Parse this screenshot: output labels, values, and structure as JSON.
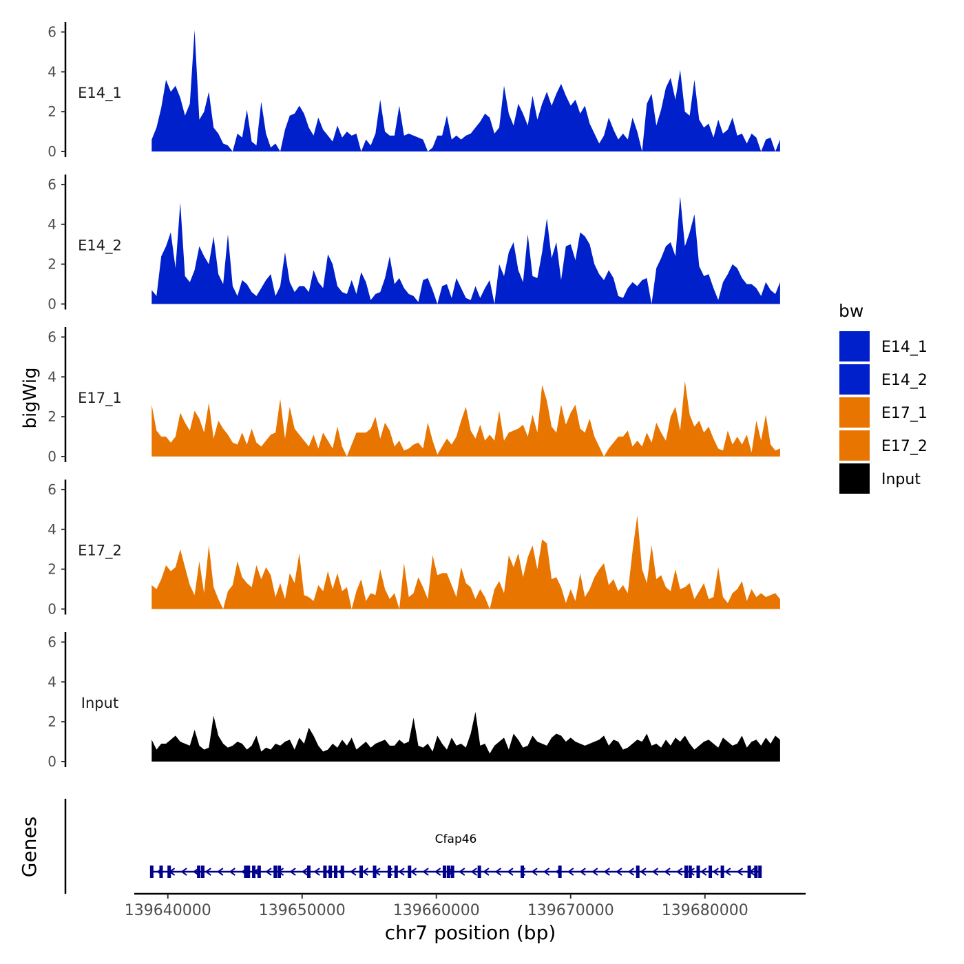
{
  "chart_data": {
    "type": "area",
    "ylabel": "bigWig",
    "genes_label": "Genes",
    "xlabel": "chr7 position (bp)",
    "xlim": [
      139637500,
      139687500
    ],
    "x_range": [
      139638800,
      139685600
    ],
    "x_ticks": [
      139640000,
      139650000,
      139660000,
      139670000,
      139680000
    ],
    "x_tick_labels": [
      "139640000",
      "139650000",
      "139660000",
      "139670000",
      "139680000"
    ],
    "ylim": [
      0,
      6.5
    ],
    "y_ticks": [
      0,
      2,
      4,
      6
    ],
    "y_tick_labels": [
      "0",
      "2",
      "4",
      "6"
    ],
    "legend": {
      "title": "bw",
      "position": "right",
      "entries": [
        "E14_1",
        "E14_2",
        "E17_1",
        "E17_2",
        "Input"
      ]
    },
    "series": [
      {
        "name": "E14_1",
        "color": "#0020CC",
        "values": [
          0.6,
          1.2,
          2.2,
          3.6,
          3.0,
          3.3,
          2.7,
          1.8,
          2.4,
          6.1,
          1.6,
          2.0,
          3.0,
          1.2,
          0.9,
          0.4,
          0.3,
          0.0,
          0.9,
          0.7,
          2.1,
          0.5,
          0.3,
          2.5,
          0.9,
          0.2,
          0.4,
          0.0,
          1.1,
          1.8,
          1.9,
          2.3,
          1.9,
          1.2,
          0.8,
          1.7,
          1.1,
          0.8,
          0.5,
          1.3,
          0.7,
          1.0,
          0.8,
          0.9,
          0.0,
          0.6,
          0.3,
          0.9,
          2.6,
          1.0,
          0.8,
          0.8,
          2.3,
          0.8,
          0.9,
          0.8,
          0.7,
          0.6,
          0.0,
          0.2,
          0.8,
          0.8,
          1.8,
          0.6,
          0.8,
          0.6,
          0.8,
          0.9,
          1.2,
          1.5,
          1.9,
          1.7,
          0.9,
          1.2,
          3.3,
          1.9,
          1.3,
          2.4,
          1.9,
          1.3,
          2.8,
          1.6,
          2.4,
          3.0,
          2.3,
          2.9,
          3.4,
          2.8,
          2.3,
          2.6,
          1.9,
          2.3,
          1.4,
          0.9,
          0.4,
          0.8,
          1.7,
          1.1,
          0.6,
          0.9,
          0.6,
          1.7,
          1.0,
          0.0,
          2.4,
          2.9,
          1.3,
          2.1,
          3.2,
          3.7,
          2.6,
          4.1,
          2.0,
          1.8,
          3.6,
          1.6,
          1.2,
          1.4,
          0.7,
          1.6,
          0.9,
          1.1,
          1.7,
          0.8,
          0.9,
          0.4,
          0.9,
          0.7,
          0.0,
          0.6,
          0.7,
          0.0,
          0.6
        ]
      },
      {
        "name": "E14_2",
        "color": "#0020CC",
        "values": [
          0.7,
          0.4,
          2.4,
          2.9,
          3.6,
          1.8,
          5.1,
          1.4,
          1.1,
          1.7,
          2.9,
          2.4,
          2.0,
          3.4,
          1.5,
          1.0,
          3.5,
          0.9,
          0.4,
          1.2,
          1.0,
          0.6,
          0.4,
          0.8,
          1.2,
          1.5,
          0.4,
          0.9,
          2.6,
          1.1,
          0.6,
          0.9,
          0.9,
          0.6,
          1.7,
          1.1,
          0.8,
          2.5,
          2.0,
          0.9,
          0.6,
          0.5,
          1.2,
          0.5,
          1.6,
          1.1,
          0.2,
          0.5,
          0.6,
          1.3,
          2.4,
          1.0,
          1.3,
          0.8,
          0.5,
          0.4,
          0.1,
          1.2,
          1.3,
          0.7,
          0.0,
          0.9,
          1.0,
          0.3,
          1.3,
          0.8,
          0.3,
          0.2,
          0.9,
          0.3,
          0.8,
          1.2,
          0.0,
          2.0,
          1.4,
          2.6,
          3.1,
          1.7,
          1.1,
          3.5,
          1.4,
          1.3,
          2.6,
          4.3,
          2.3,
          3.1,
          1.2,
          2.9,
          3.0,
          2.2,
          3.6,
          3.4,
          3.0,
          2.0,
          1.5,
          1.2,
          1.7,
          1.3,
          0.4,
          0.3,
          0.8,
          1.1,
          0.9,
          1.2,
          1.3,
          0.0,
          1.8,
          2.3,
          2.9,
          3.1,
          2.4,
          5.4,
          2.9,
          3.6,
          4.5,
          1.9,
          1.4,
          1.5,
          0.8,
          0.2,
          1.1,
          1.5,
          2.0,
          1.8,
          1.3,
          1.0,
          1.0,
          0.8,
          0.4,
          1.1,
          0.7,
          0.5,
          1.1
        ]
      },
      {
        "name": "E17_1",
        "color": "#E87500",
        "values": [
          2.6,
          1.3,
          1.0,
          1.0,
          0.7,
          1.0,
          2.2,
          1.7,
          1.3,
          2.3,
          1.9,
          1.2,
          2.7,
          0.9,
          1.8,
          1.4,
          1.1,
          0.7,
          0.6,
          1.2,
          0.6,
          1.4,
          0.7,
          0.5,
          0.8,
          1.1,
          1.2,
          2.9,
          0.9,
          2.5,
          1.4,
          1.1,
          0.8,
          0.5,
          1.1,
          0.4,
          1.2,
          0.8,
          0.4,
          1.5,
          0.5,
          0.0,
          0.6,
          1.2,
          1.2,
          1.2,
          1.4,
          2.0,
          0.9,
          1.7,
          1.3,
          0.5,
          0.8,
          0.3,
          0.4,
          0.6,
          0.7,
          0.4,
          1.7,
          0.8,
          0.1,
          0.5,
          0.9,
          0.6,
          1.0,
          1.8,
          2.5,
          1.3,
          0.9,
          1.6,
          0.8,
          1.1,
          0.8,
          2.3,
          0.8,
          1.2,
          1.3,
          1.4,
          1.6,
          1.0,
          2.1,
          1.2,
          3.6,
          2.8,
          1.5,
          1.2,
          2.6,
          1.6,
          2.2,
          2.6,
          1.4,
          1.2,
          1.9,
          1.0,
          0.5,
          0.0,
          0.4,
          0.7,
          1.0,
          1.0,
          1.3,
          0.5,
          0.8,
          0.5,
          1.2,
          0.7,
          1.7,
          1.2,
          0.8,
          2.0,
          2.5,
          1.3,
          3.8,
          2.1,
          1.5,
          1.8,
          1.2,
          1.5,
          0.9,
          0.4,
          0.3,
          1.3,
          0.6,
          1.0,
          0.6,
          1.1,
          0.2,
          1.8,
          0.8,
          2.1,
          0.6,
          0.3,
          0.4
        ]
      },
      {
        "name": "E17_2",
        "color": "#E87500",
        "values": [
          1.2,
          1.0,
          1.5,
          2.2,
          1.9,
          2.1,
          3.0,
          2.1,
          1.2,
          0.7,
          2.4,
          0.8,
          3.2,
          1.1,
          0.5,
          0.0,
          0.9,
          1.2,
          2.4,
          1.6,
          1.3,
          1.1,
          2.2,
          1.5,
          2.1,
          1.7,
          0.6,
          1.3,
          0.5,
          1.8,
          1.3,
          2.8,
          0.7,
          0.6,
          0.4,
          1.2,
          0.9,
          1.9,
          1.0,
          1.8,
          0.9,
          1.1,
          0.0,
          0.9,
          1.5,
          0.4,
          0.8,
          0.7,
          2.0,
          1.0,
          0.5,
          0.8,
          0.0,
          2.3,
          0.6,
          0.8,
          1.6,
          1.1,
          0.5,
          2.7,
          1.7,
          1.8,
          1.8,
          1.2,
          0.6,
          2.1,
          1.3,
          1.1,
          0.5,
          1.0,
          0.6,
          0.0,
          1.0,
          1.4,
          0.8,
          2.7,
          2.1,
          2.8,
          1.6,
          2.6,
          3.2,
          2.0,
          3.5,
          3.3,
          1.5,
          1.6,
          1.1,
          0.3,
          1.0,
          0.4,
          1.8,
          0.6,
          1.0,
          1.6,
          2.0,
          2.3,
          1.2,
          1.5,
          0.9,
          1.2,
          0.8,
          2.9,
          4.7,
          2.0,
          1.3,
          3.2,
          1.5,
          1.7,
          1.1,
          0.9,
          2.0,
          1.0,
          1.1,
          1.3,
          0.5,
          0.9,
          1.3,
          0.5,
          0.6,
          2.1,
          0.6,
          0.3,
          0.8,
          1.0,
          1.4,
          0.4,
          1.0,
          0.6,
          0.8,
          0.6,
          0.7,
          0.8,
          0.5
        ]
      },
      {
        "name": "Input",
        "color": "#000000",
        "values": [
          1.1,
          0.6,
          0.9,
          0.9,
          1.1,
          1.3,
          1.0,
          0.9,
          0.8,
          1.6,
          0.8,
          0.6,
          0.7,
          2.3,
          1.3,
          0.9,
          0.7,
          0.8,
          1.0,
          0.9,
          0.6,
          0.8,
          1.3,
          0.5,
          0.7,
          0.6,
          0.9,
          0.8,
          1.0,
          1.1,
          0.6,
          1.2,
          0.9,
          1.7,
          1.3,
          0.8,
          0.5,
          0.6,
          0.9,
          0.7,
          1.1,
          0.8,
          1.2,
          0.6,
          0.8,
          1.0,
          0.7,
          0.9,
          1.0,
          1.1,
          0.8,
          0.8,
          1.1,
          0.9,
          1.0,
          2.2,
          0.8,
          0.7,
          0.9,
          0.5,
          1.3,
          0.9,
          0.6,
          1.2,
          0.8,
          0.9,
          0.7,
          1.4,
          2.5,
          0.8,
          0.9,
          0.4,
          0.8,
          1.0,
          1.2,
          0.6,
          1.4,
          1.1,
          0.7,
          0.8,
          1.3,
          1.0,
          0.9,
          0.8,
          1.2,
          1.4,
          1.3,
          1.0,
          1.2,
          1.0,
          0.9,
          0.8,
          0.9,
          1.0,
          1.1,
          1.3,
          0.8,
          1.1,
          1.0,
          0.6,
          0.7,
          0.9,
          1.1,
          1.0,
          1.4,
          0.8,
          0.9,
          0.7,
          1.1,
          0.8,
          1.2,
          1.0,
          1.3,
          0.9,
          0.6,
          0.8,
          1.0,
          1.1,
          0.9,
          0.7,
          1.2,
          1.0,
          0.8,
          0.9,
          1.3,
          0.7,
          1.0,
          1.1,
          0.8,
          1.2,
          0.9,
          1.3,
          1.1
        ]
      }
    ],
    "gene": {
      "name": "Cfap46",
      "color": "#00008B",
      "start": 139638700,
      "end": 139684200,
      "strand": "-",
      "exons": [
        139638800,
        139639500,
        139640100,
        139642300,
        139642600,
        139645800,
        139646000,
        139646400,
        139646800,
        139648000,
        139648300,
        139650500,
        139651700,
        139652100,
        139652500,
        139653000,
        139654400,
        139655400,
        139656500,
        139657000,
        139658000,
        139660600,
        139660900,
        139661200,
        139663200,
        139666400,
        139669200,
        139675000,
        139678600,
        139678900,
        139679500,
        139680400,
        139681300,
        139683300,
        139683800,
        139684100
      ]
    }
  }
}
